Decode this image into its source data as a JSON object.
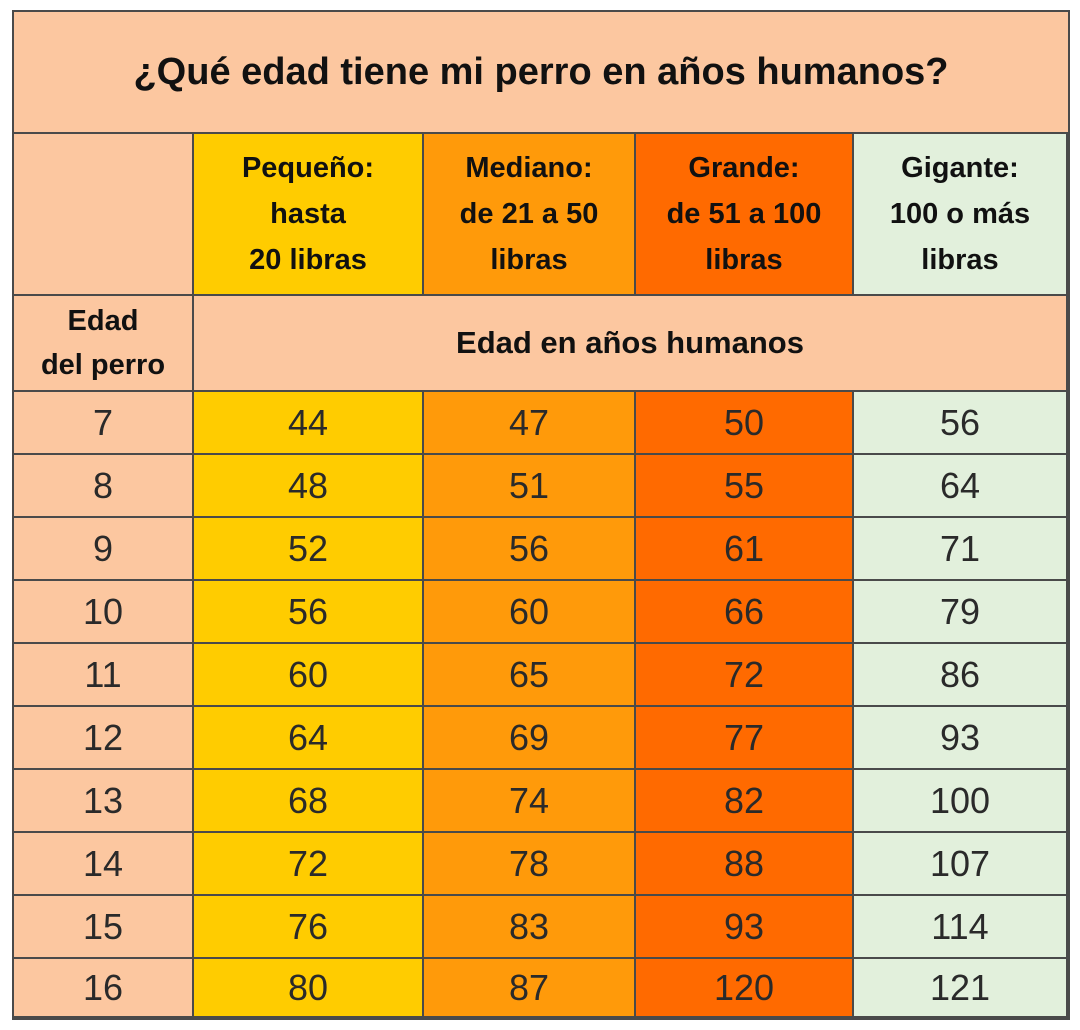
{
  "title": "¿Qué edad tiene mi perro en años humanos?",
  "corner_label": "",
  "columns": [
    {
      "label": "Pequeño:\nhasta\n20 libras",
      "color": "#ffcc00"
    },
    {
      "label": "Mediano:\nde 21 a 50\nlibras",
      "color": "#ff9a0a"
    },
    {
      "label": "Grande:\nde 51 a 100\nlibras",
      "color": "#ff6a00"
    },
    {
      "label": "Gigante:\n100 o más\nlibras",
      "color": "#e2f0dc"
    }
  ],
  "row_header_label": "Edad\ndel perro",
  "subheader_label": "Edad en años humanos",
  "chart_data": {
    "type": "table",
    "title": "¿Qué edad tiene mi perro en años humanos?",
    "row_header": "Edad del perro",
    "value_header": "Edad en años humanos",
    "columns": [
      "Pequeño: hasta 20 libras",
      "Mediano: de 21 a 50 libras",
      "Grande: de 51 a 100 libras",
      "Gigante: 100 o más libras"
    ],
    "rows": [
      {
        "dog_age": "7",
        "values": [
          "44",
          "47",
          "50",
          "56"
        ]
      },
      {
        "dog_age": "8",
        "values": [
          "48",
          "51",
          "55",
          "64"
        ]
      },
      {
        "dog_age": "9",
        "values": [
          "52",
          "56",
          "61",
          "71"
        ]
      },
      {
        "dog_age": "10",
        "values": [
          "56",
          "60",
          "66",
          "79"
        ]
      },
      {
        "dog_age": "11",
        "values": [
          "60",
          "65",
          "72",
          "86"
        ]
      },
      {
        "dog_age": "12",
        "values": [
          "64",
          "69",
          "77",
          "93"
        ]
      },
      {
        "dog_age": "13",
        "values": [
          "68",
          "74",
          "82",
          "100"
        ]
      },
      {
        "dog_age": "14",
        "values": [
          "72",
          "78",
          "88",
          "107"
        ]
      },
      {
        "dog_age": "15",
        "values": [
          "76",
          "83",
          "93",
          "114"
        ]
      },
      {
        "dog_age": "16",
        "values": [
          "80",
          "87",
          "120",
          "121"
        ]
      }
    ]
  }
}
